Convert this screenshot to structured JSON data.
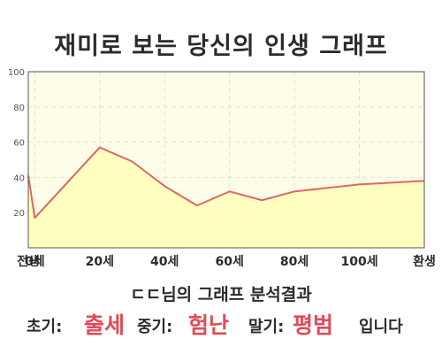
{
  "title": "재미로 보는 당신의 인생 그래프",
  "chart_data": {
    "type": "area",
    "x": [
      -2,
      0,
      20,
      30,
      40,
      50,
      60,
      70,
      80,
      90,
      100,
      120
    ],
    "values": [
      41,
      17,
      57,
      49,
      35,
      24,
      32,
      27,
      32,
      34,
      36,
      38
    ],
    "x_ticks": [
      {
        "x": -2,
        "label": "전생"
      },
      {
        "x": 0,
        "label": "0세"
      },
      {
        "x": 20,
        "label": "20세"
      },
      {
        "x": 40,
        "label": "40세"
      },
      {
        "x": 60,
        "label": "60세"
      },
      {
        "x": 80,
        "label": "80세"
      },
      {
        "x": 100,
        "label": "100세"
      },
      {
        "x": 120,
        "label": "환생"
      }
    ],
    "y_ticks": [
      20,
      40,
      60,
      80,
      100
    ],
    "ylim": [
      0,
      100
    ],
    "grid": true,
    "colors": {
      "fill": "#ffffc0",
      "line": "#e06666",
      "plot_bg": "#fdfde8",
      "grid": "#e3e3cc"
    }
  },
  "summary": {
    "heading": "ㄷㄷ님의 그래프 분석결과",
    "early_label": "초기:",
    "early_value": "출세",
    "mid_label": "중기:",
    "mid_value": "험난",
    "late_label": "말기:",
    "late_value": "평범",
    "ending": "입니다"
  }
}
